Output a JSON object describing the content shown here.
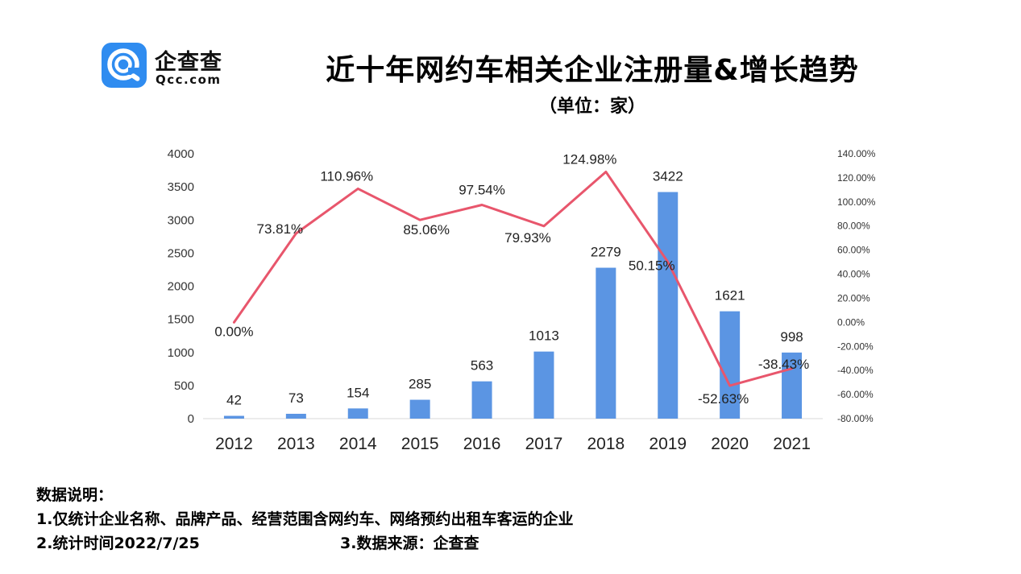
{
  "logo": {
    "name_cn": "企查查",
    "name_en": "Qcc.com"
  },
  "colors": {
    "bar": "#5b95e3",
    "line": "#e8566c",
    "axis_text": "#333333"
  },
  "chart_data": {
    "type": "bar",
    "title": "近十年网约车相关企业注册量&增长趋势",
    "subtitle": "（单位：家）",
    "categories": [
      "2012",
      "2013",
      "2014",
      "2015",
      "2016",
      "2017",
      "2018",
      "2019",
      "2020",
      "2021"
    ],
    "series": [
      {
        "type": "bar",
        "axis": "left",
        "values": [
          42,
          73,
          154,
          285,
          563,
          1013,
          2279,
          3422,
          1621,
          998
        ],
        "labels": [
          "42",
          "73",
          "154",
          "285",
          "563",
          "1013",
          "2279",
          "3422",
          "1621",
          "998"
        ]
      },
      {
        "type": "line",
        "axis": "right",
        "values": [
          0.0,
          73.81,
          110.96,
          85.06,
          97.54,
          79.93,
          124.98,
          50.15,
          -52.63,
          -38.43
        ],
        "labels": [
          "0.00%",
          "73.81%",
          "110.96%",
          "85.06%",
          "97.54%",
          "79.93%",
          "124.98%",
          "50.15%",
          "-52.63%",
          "-38.43%"
        ]
      }
    ],
    "y_left": {
      "range": [
        0,
        4000
      ],
      "ticks": [
        "0",
        "500",
        "1000",
        "1500",
        "2000",
        "2500",
        "3000",
        "3500",
        "4000"
      ]
    },
    "y_right": {
      "range": [
        -80,
        140
      ],
      "ticks": [
        "-80.00%",
        "-60.00%",
        "-40.00%",
        "-20.00%",
        "0.00%",
        "20.00%",
        "40.00%",
        "60.00%",
        "80.00%",
        "100.00%",
        "120.00%",
        "140.00%"
      ]
    },
    "grid": false,
    "legend": "none"
  },
  "notes": {
    "heading": "数据说明：",
    "line1": "1.仅统计企业名称、品牌产品、经营范围含网约车、网络预约出租车客运的企业",
    "line2": "2.统计时间2022/7/25",
    "line3": "3.数据来源：企查查"
  }
}
